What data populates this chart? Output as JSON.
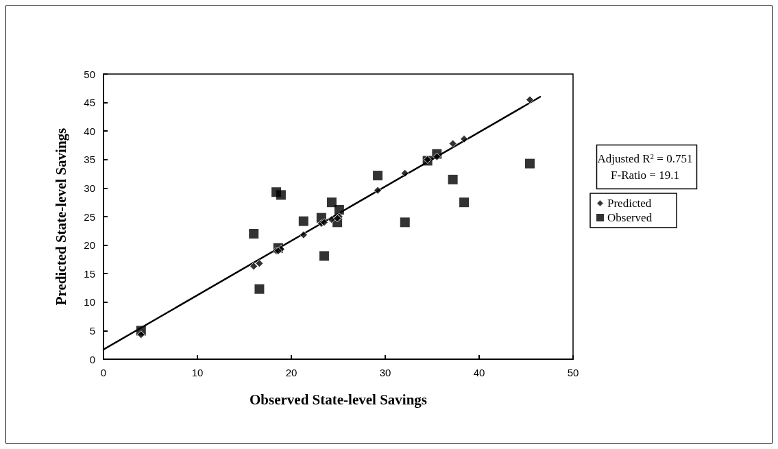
{
  "chart_data": {
    "type": "scatter",
    "xlabel": "Observed State-level Savings",
    "ylabel": "Predicted State-level Savings",
    "xlim": [
      0,
      50
    ],
    "xticks": [
      0,
      10,
      20,
      30,
      40,
      50
    ],
    "ylim": [
      0,
      50
    ],
    "yticks": [
      0,
      5,
      10,
      15,
      20,
      25,
      30,
      35,
      40,
      45,
      50
    ],
    "grid": false,
    "legend": "right",
    "annotations": [
      "Adjusted R$^{2}$ = 0.751",
      "F-Ratio = 19.1"
    ],
    "series": [
      {
        "name": "Predicted",
        "color": "#000000",
        "marker": "diamond",
        "x": [
          4,
          16,
          16.6,
          18.4,
          18.9,
          18.6,
          21.3,
          23.2,
          23.5,
          24.3,
          25.1,
          24.9,
          29.2,
          32.1,
          34.5,
          35.5,
          37.2,
          38.4,
          45.4
        ],
        "values": [
          4.3,
          16.3,
          16.8,
          19.0,
          19.3,
          19.0,
          21.8,
          23.8,
          24.0,
          24.5,
          25.0,
          24.7,
          29.6,
          32.6,
          35.0,
          35.5,
          37.8,
          38.6,
          45.5
        ]
      },
      {
        "name": "Observed",
        "color": "#000000",
        "marker": "square",
        "x": [
          4,
          16,
          16.6,
          18.4,
          18.9,
          18.6,
          21.3,
          23.2,
          23.5,
          24.3,
          25.1,
          24.9,
          29.2,
          32.1,
          34.5,
          35.5,
          37.2,
          38.4,
          45.4
        ],
        "values": [
          5.0,
          22.0,
          12.3,
          29.3,
          28.8,
          19.5,
          24.2,
          24.8,
          18.1,
          27.5,
          26.2,
          24.0,
          32.2,
          24.0,
          34.8,
          36.0,
          31.5,
          27.5,
          34.3
        ]
      },
      {
        "type": "line",
        "color": "#000000",
        "marker": "none",
        "line_style": "solid",
        "x": [
          0,
          46.5
        ],
        "values": [
          1.7,
          46.0
        ]
      }
    ]
  }
}
